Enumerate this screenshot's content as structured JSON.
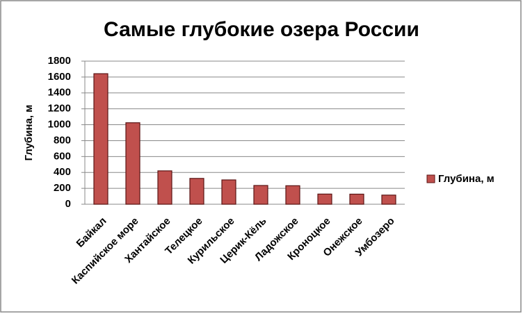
{
  "chart_data": {
    "type": "bar",
    "title": "Самые глубокие озера России",
    "y_axis_label": "Глубина, м",
    "categories": [
      "Байкал",
      "Каспийское море",
      "Хантайское",
      "Телецкое",
      "Курильское",
      "Церик-Кёль",
      "Ладожское",
      "Кроноцкое",
      "Онежское",
      "Умбозеро"
    ],
    "series": [
      {
        "name": "Глубина, м",
        "color": "#c0504d",
        "values": [
          1642,
          1025,
          420,
          325,
          306,
          236,
          233,
          128,
          127,
          115
        ]
      }
    ],
    "ylim": [
      0,
      1800
    ],
    "yticks": [
      0,
      200,
      400,
      600,
      800,
      1000,
      1200,
      1400,
      1600,
      1800
    ],
    "grid": true,
    "legend": "right"
  }
}
